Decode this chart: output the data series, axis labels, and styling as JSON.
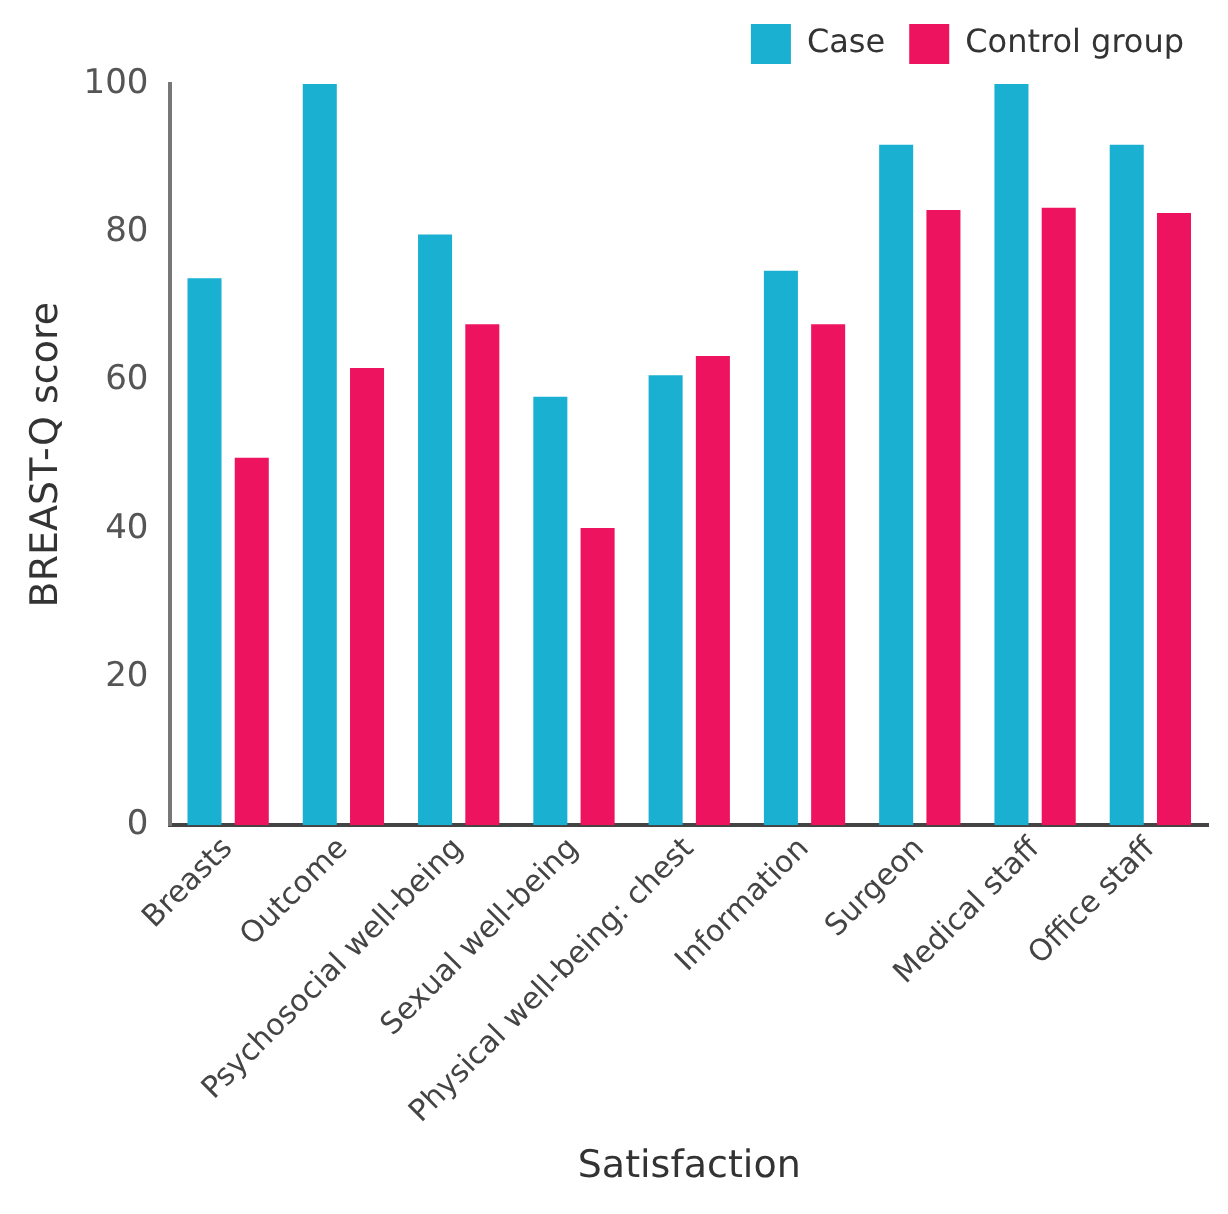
{
  "chart_data": {
    "type": "bar",
    "xlabel": "Satisfaction",
    "ylabel": "BREAST-Q score",
    "categories": [
      "Breasts",
      "Outcome",
      "Psychosocial well-being",
      "Sexual well-being",
      "Physical well-being: chest",
      "Information",
      "Surgeon",
      "Medical staff",
      "Office staff"
    ],
    "series": [
      {
        "name": "Case",
        "color": "#19b0d2",
        "values": [
          73.8,
          100,
          79.7,
          57.8,
          60.7,
          74.8,
          91.8,
          100,
          91.8
        ]
      },
      {
        "name": "Control group",
        "color": "#ee135f",
        "values": [
          49.6,
          61.7,
          67.6,
          40.1,
          63.3,
          67.6,
          83.0,
          83.3,
          82.6
        ]
      }
    ],
    "ylim": [
      0,
      100
    ],
    "yticks": [
      0,
      20,
      40,
      60,
      80,
      100
    ],
    "grid": false,
    "legend": "top right"
  }
}
